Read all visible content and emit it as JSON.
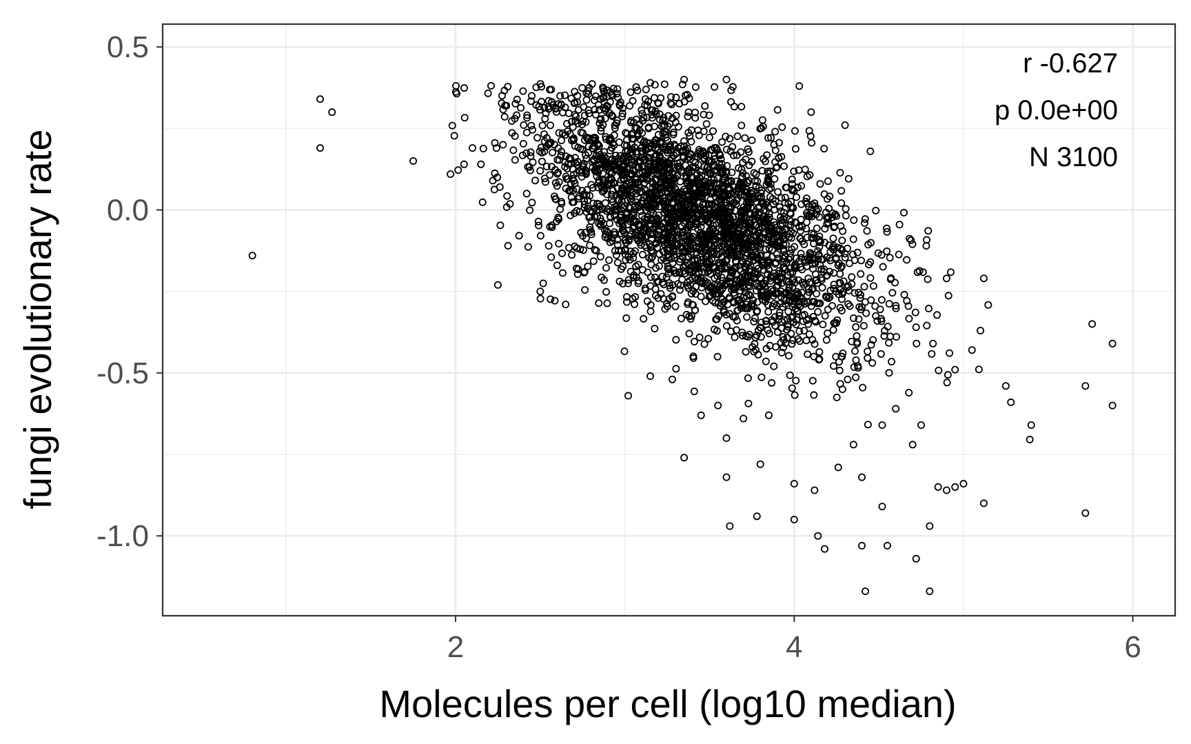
{
  "chart_data": {
    "type": "scatter",
    "title": "",
    "xlabel": "Molecules per cell (log10 median)",
    "ylabel": "fungi evolutionary rate",
    "xlim": [
      0.27,
      6.25
    ],
    "ylim": [
      -1.245,
      0.57
    ],
    "x_ticks": [
      2,
      4,
      6
    ],
    "x_tick_labels": [
      "2",
      "4",
      "6"
    ],
    "y_ticks": [
      0.5,
      0.0,
      -0.5,
      -1.0
    ],
    "y_tick_labels": [
      "0.5",
      "0.0",
      "-0.5",
      "-1.0"
    ],
    "x_minor_gridlines": [
      1,
      3,
      5
    ],
    "y_minor_gridlines": [
      0.25,
      -0.25,
      -0.75
    ],
    "grid": true,
    "marker": "open-circle",
    "colors": {
      "points": "#000000",
      "panel_border": "#333333",
      "grid": "#ebebeb",
      "tick_text": "#4d4d4d"
    },
    "annotations": [
      "r -0.627",
      "p 0.0e+00",
      "N 3100"
    ],
    "total_points": 3100,
    "core_cloud": {
      "n": 2920,
      "center": [
        3.45,
        -0.03
      ],
      "note": "dense negative-correlation cloud (slope ~ -0.24 per log10 unit)"
    },
    "points": [
      [
        0.8,
        -0.14
      ],
      [
        1.2,
        0.34
      ],
      [
        1.27,
        0.3
      ],
      [
        1.2,
        0.19
      ],
      [
        1.75,
        0.15
      ],
      [
        2.25,
        -0.23
      ],
      [
        2.5,
        -0.25
      ],
      [
        2.65,
        -0.29
      ],
      [
        3.02,
        -0.57
      ],
      [
        3.15,
        -0.51
      ],
      [
        3.35,
        -0.76
      ],
      [
        3.6,
        -0.7
      ],
      [
        3.6,
        -0.82
      ],
      [
        3.62,
        -0.97
      ],
      [
        3.78,
        -0.94
      ],
      [
        3.8,
        -0.78
      ],
      [
        4.0,
        -0.84
      ],
      [
        4.0,
        -0.95
      ],
      [
        4.12,
        -0.86
      ],
      [
        4.14,
        -1.0
      ],
      [
        4.18,
        -1.04
      ],
      [
        4.26,
        -0.79
      ],
      [
        4.4,
        -0.82
      ],
      [
        4.4,
        -1.03
      ],
      [
        4.42,
        -1.17
      ],
      [
        4.52,
        -0.91
      ],
      [
        4.55,
        -1.03
      ],
      [
        4.72,
        -1.07
      ],
      [
        4.8,
        -1.17
      ],
      [
        4.8,
        -0.97
      ],
      [
        4.85,
        -0.85
      ],
      [
        4.9,
        -0.86
      ],
      [
        4.95,
        -0.85
      ],
      [
        5.0,
        -0.84
      ],
      [
        5.12,
        -0.9
      ],
      [
        5.4,
        -0.66
      ],
      [
        5.72,
        -0.54
      ],
      [
        5.72,
        -0.93
      ],
      [
        5.76,
        -0.35
      ],
      [
        5.88,
        -0.41
      ],
      [
        5.88,
        -0.6
      ],
      [
        4.03,
        0.38
      ],
      [
        4.1,
        0.3
      ],
      [
        4.3,
        0.26
      ],
      [
        4.45,
        0.18
      ],
      [
        3.35,
        0.4
      ],
      [
        3.6,
        0.4
      ],
      [
        3.15,
        0.39
      ],
      [
        4.78,
        -0.11
      ],
      [
        5.12,
        -0.21
      ],
      [
        5.1,
        -0.37
      ],
      [
        5.05,
        -0.43
      ],
      [
        5.25,
        -0.54
      ],
      [
        5.28,
        -0.59
      ],
      [
        4.95,
        -0.49
      ],
      [
        4.45,
        -0.16
      ],
      [
        4.65,
        -0.26
      ],
      [
        4.72,
        -0.36
      ],
      [
        4.9,
        -0.21
      ],
      [
        4.82,
        -0.41
      ],
      [
        4.6,
        -0.61
      ],
      [
        4.75,
        -0.66
      ],
      [
        4.7,
        -0.72
      ],
      [
        4.52,
        -0.66
      ],
      [
        4.35,
        -0.72
      ],
      [
        2.1,
        0.19
      ],
      [
        2.05,
        0.14
      ],
      [
        2.15,
        0.14
      ],
      [
        2.22,
        0.09
      ],
      [
        1.97,
        0.11
      ],
      [
        2.3,
        0.32
      ],
      [
        2.35,
        0.28
      ],
      [
        2.45,
        0.35
      ],
      [
        2.55,
        0.31
      ],
      [
        2.28,
        0.2
      ],
      [
        2.5,
        0.12
      ],
      [
        2.42,
        0.05
      ],
      [
        2.55,
        -0.11
      ],
      [
        2.6,
        -0.17
      ],
      [
        2.72,
        0.35
      ],
      [
        3.28,
        -0.52
      ],
      [
        3.45,
        -0.63
      ],
      [
        3.55,
        -0.6
      ],
      [
        3.7,
        -0.64
      ],
      [
        3.85,
        -0.63
      ]
    ]
  }
}
